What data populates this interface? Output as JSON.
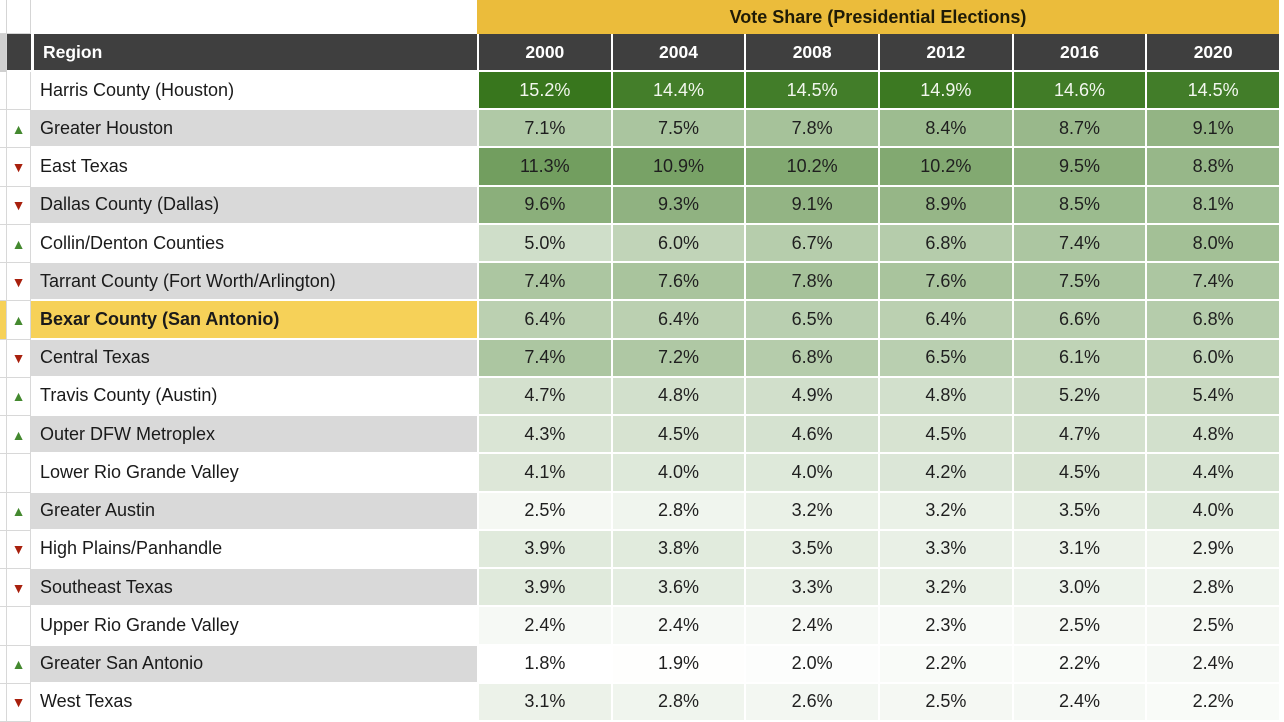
{
  "title": "Vote Share (Presidential Elections)",
  "region_header": "Region",
  "years": [
    "2000",
    "2004",
    "2008",
    "2012",
    "2016",
    "2020"
  ],
  "rows": [
    {
      "region": "Harris County (Houston)",
      "trend": "none",
      "highlight": false,
      "values": [
        15.2,
        14.4,
        14.5,
        14.9,
        14.6,
        14.5
      ]
    },
    {
      "region": "Greater Houston",
      "trend": "up",
      "highlight": false,
      "values": [
        7.1,
        7.5,
        7.8,
        8.4,
        8.7,
        9.1
      ]
    },
    {
      "region": "East Texas",
      "trend": "down",
      "highlight": false,
      "values": [
        11.3,
        10.9,
        10.2,
        10.2,
        9.5,
        8.8
      ]
    },
    {
      "region": "Dallas County (Dallas)",
      "trend": "down",
      "highlight": false,
      "values": [
        9.6,
        9.3,
        9.1,
        8.9,
        8.5,
        8.1
      ]
    },
    {
      "region": "Collin/Denton Counties",
      "trend": "up",
      "highlight": false,
      "values": [
        5.0,
        6.0,
        6.7,
        6.8,
        7.4,
        8.0
      ]
    },
    {
      "region": "Tarrant County (Fort Worth/Arlington)",
      "trend": "down",
      "highlight": false,
      "values": [
        7.4,
        7.6,
        7.8,
        7.6,
        7.5,
        7.4
      ]
    },
    {
      "region": "Bexar County (San Antonio)",
      "trend": "up",
      "highlight": true,
      "values": [
        6.4,
        6.4,
        6.5,
        6.4,
        6.6,
        6.8
      ]
    },
    {
      "region": "Central Texas",
      "trend": "down",
      "highlight": false,
      "values": [
        7.4,
        7.2,
        6.8,
        6.5,
        6.1,
        6.0
      ]
    },
    {
      "region": "Travis County (Austin)",
      "trend": "up",
      "highlight": false,
      "values": [
        4.7,
        4.8,
        4.9,
        4.8,
        5.2,
        5.4
      ]
    },
    {
      "region": "Outer DFW Metroplex",
      "trend": "up",
      "highlight": false,
      "values": [
        4.3,
        4.5,
        4.6,
        4.5,
        4.7,
        4.8
      ]
    },
    {
      "region": "Lower Rio Grande Valley",
      "trend": "none",
      "highlight": false,
      "values": [
        4.1,
        4.0,
        4.0,
        4.2,
        4.5,
        4.4
      ]
    },
    {
      "region": "Greater Austin",
      "trend": "up",
      "highlight": false,
      "values": [
        2.5,
        2.8,
        3.2,
        3.2,
        3.5,
        4.0
      ]
    },
    {
      "region": "High Plains/Panhandle",
      "trend": "down",
      "highlight": false,
      "values": [
        3.9,
        3.8,
        3.5,
        3.3,
        3.1,
        2.9
      ]
    },
    {
      "region": "Southeast Texas",
      "trend": "down",
      "highlight": false,
      "values": [
        3.9,
        3.6,
        3.3,
        3.2,
        3.0,
        2.8
      ]
    },
    {
      "region": "Upper Rio Grande Valley",
      "trend": "none",
      "highlight": false,
      "values": [
        2.4,
        2.4,
        2.4,
        2.3,
        2.5,
        2.5
      ]
    },
    {
      "region": "Greater San Antonio",
      "trend": "up",
      "highlight": false,
      "values": [
        1.8,
        1.9,
        2.0,
        2.2,
        2.2,
        2.4
      ]
    },
    {
      "region": "West Texas",
      "trend": "down",
      "highlight": false,
      "values": [
        3.1,
        2.8,
        2.6,
        2.5,
        2.4,
        2.2
      ]
    }
  ],
  "icons": {
    "up": "▲",
    "down": "▼"
  },
  "colors": {
    "banner_bg": "#EBBC3B",
    "banner_text": "#1F1B07",
    "header_bg": "#3F3F3F",
    "header_text": "#FFFFFF",
    "header_gutter_bg": "#CFCFCF",
    "row_white_bg": "#FFFFFF",
    "row_gray_bg": "#D9D9D9",
    "highlight_bg": "#F6D158",
    "scale_min_color": "#FFFFFF",
    "scale_max_color": "#38761D",
    "value_text_dark": "#1F1F1F",
    "value_text_light": "#F2F7EE",
    "trend_up": "#44892F",
    "trend_down": "#A8200D"
  },
  "scale": {
    "min": 1.8,
    "max": 15.2,
    "white_text_threshold": 14.0
  },
  "chart_data": {
    "type": "heatmap",
    "title": "Vote Share (Presidential Elections)",
    "columns": [
      "2000",
      "2004",
      "2008",
      "2012",
      "2016",
      "2020"
    ],
    "rows": [
      {
        "name": "Harris County (Houston)",
        "values": [
          15.2,
          14.4,
          14.5,
          14.9,
          14.6,
          14.5
        ]
      },
      {
        "name": "Greater Houston",
        "values": [
          7.1,
          7.5,
          7.8,
          8.4,
          8.7,
          9.1
        ]
      },
      {
        "name": "East Texas",
        "values": [
          11.3,
          10.9,
          10.2,
          10.2,
          9.5,
          8.8
        ]
      },
      {
        "name": "Dallas County (Dallas)",
        "values": [
          9.6,
          9.3,
          9.1,
          8.9,
          8.5,
          8.1
        ]
      },
      {
        "name": "Collin/Denton Counties",
        "values": [
          5.0,
          6.0,
          6.7,
          6.8,
          7.4,
          8.0
        ]
      },
      {
        "name": "Tarrant County (Fort Worth/Arlington)",
        "values": [
          7.4,
          7.6,
          7.8,
          7.6,
          7.5,
          7.4
        ]
      },
      {
        "name": "Bexar County (San Antonio)",
        "values": [
          6.4,
          6.4,
          6.5,
          6.4,
          6.6,
          6.8
        ]
      },
      {
        "name": "Central Texas",
        "values": [
          7.4,
          7.2,
          6.8,
          6.5,
          6.1,
          6.0
        ]
      },
      {
        "name": "Travis County (Austin)",
        "values": [
          4.7,
          4.8,
          4.9,
          4.8,
          5.2,
          5.4
        ]
      },
      {
        "name": "Outer DFW Metroplex",
        "values": [
          4.3,
          4.5,
          4.6,
          4.5,
          4.7,
          4.8
        ]
      },
      {
        "name": "Lower Rio Grande Valley",
        "values": [
          4.1,
          4.0,
          4.0,
          4.2,
          4.5,
          4.4
        ]
      },
      {
        "name": "Greater Austin",
        "values": [
          2.5,
          2.8,
          3.2,
          3.2,
          3.5,
          4.0
        ]
      },
      {
        "name": "High Plains/Panhandle",
        "values": [
          3.9,
          3.8,
          3.5,
          3.3,
          3.1,
          2.9
        ]
      },
      {
        "name": "Southeast Texas",
        "values": [
          3.9,
          3.6,
          3.3,
          3.2,
          3.0,
          2.8
        ]
      },
      {
        "name": "Upper Rio Grande Valley",
        "values": [
          2.4,
          2.4,
          2.4,
          2.3,
          2.5,
          2.5
        ]
      },
      {
        "name": "Greater San Antonio",
        "values": [
          1.8,
          1.9,
          2.0,
          2.2,
          2.2,
          2.4
        ]
      },
      {
        "name": "West Texas",
        "values": [
          3.1,
          2.8,
          2.6,
          2.5,
          2.4,
          2.2
        ]
      }
    ],
    "value_unit": "%",
    "color_scale": {
      "min_value": 1.8,
      "max_value": 15.2,
      "min_color": "#FFFFFF",
      "max_color": "#38761D"
    }
  }
}
